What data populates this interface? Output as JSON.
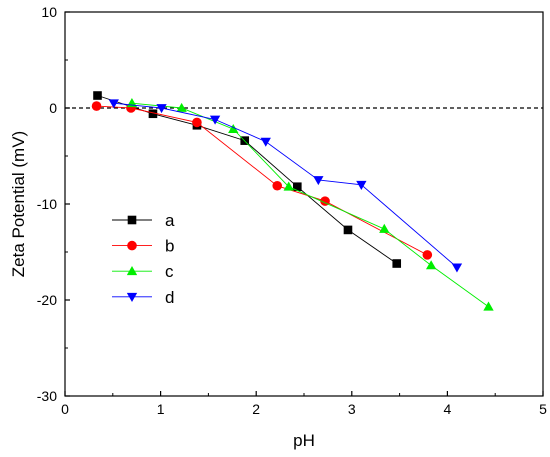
{
  "chart_data": {
    "type": "line",
    "xlabel": "pH",
    "ylabel": "Zeta Potential (mV)",
    "xlim": [
      0,
      5
    ],
    "ylim": [
      -30,
      10
    ],
    "xticks": [
      "0",
      "1",
      "2",
      "3",
      "4",
      "5"
    ],
    "yticks": [
      "10",
      "0",
      "-10",
      "-20",
      "-30"
    ],
    "grid": false,
    "reference_line": {
      "y": 0,
      "style": "dashed"
    },
    "legend_position": "center-left",
    "series": [
      {
        "name": "a",
        "color": "#000000",
        "marker": "square",
        "x": [
          0.34,
          0.92,
          1.38,
          1.88,
          2.43,
          2.96,
          3.47
        ],
        "y": [
          1.3,
          -0.6,
          -1.8,
          -3.4,
          -8.2,
          -12.7,
          -16.2
        ]
      },
      {
        "name": "b",
        "color": "#ff0000",
        "marker": "circle",
        "x": [
          0.33,
          0.69,
          1.38,
          2.22,
          2.72,
          3.79
        ],
        "y": [
          0.2,
          0.0,
          -1.5,
          -8.1,
          -9.7,
          -15.3
        ]
      },
      {
        "name": "c",
        "color": "#00ee00",
        "marker": "triangle-up",
        "x": [
          0.7,
          1.22,
          1.76,
          2.34,
          3.34,
          3.83,
          4.43
        ],
        "y": [
          0.5,
          0.0,
          -2.2,
          -8.2,
          -12.6,
          -16.4,
          -20.7
        ]
      },
      {
        "name": "d",
        "color": "#0000ff",
        "marker": "triangle-down",
        "x": [
          0.51,
          1.01,
          1.57,
          2.1,
          2.65,
          3.1,
          4.1
        ],
        "y": [
          0.5,
          0.0,
          -1.2,
          -3.5,
          -7.5,
          -8.0,
          -16.6
        ]
      }
    ]
  },
  "colors": {
    "axis": "#000000",
    "background": "#ffffff"
  }
}
